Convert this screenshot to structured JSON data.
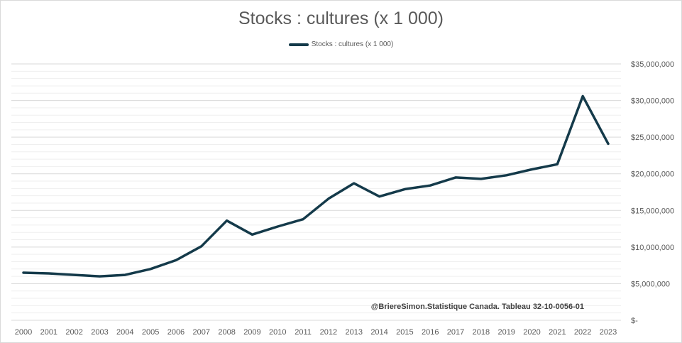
{
  "chart_data": {
    "type": "line",
    "title": "Stocks : cultures (x 1 000)",
    "xlabel": "",
    "ylabel": "",
    "ylim": [
      0,
      35000000
    ],
    "y_ticks": [
      0,
      5000000,
      10000000,
      15000000,
      20000000,
      25000000,
      30000000,
      35000000
    ],
    "y_tick_labels": [
      "$-",
      "$5,000,000",
      "$10,000,000",
      "$15,000,000",
      "$20,000,000",
      "$25,000,000",
      "$30,000,000",
      "$35,000,000"
    ],
    "categories": [
      "2000",
      "2001",
      "2002",
      "2003",
      "2004",
      "2005",
      "2006",
      "2007",
      "2008",
      "2009",
      "2010",
      "2011",
      "2012",
      "2013",
      "2014",
      "2015",
      "2016",
      "2017",
      "2018",
      "2019",
      "2020",
      "2021",
      "2022",
      "2023"
    ],
    "series": [
      {
        "name": "Stocks : cultures (x 1 000)",
        "color": "#143a4a",
        "values": [
          6500000,
          6400000,
          6200000,
          6000000,
          6200000,
          7000000,
          8200000,
          10100000,
          13600000,
          11700000,
          12800000,
          13800000,
          16600000,
          18700000,
          16900000,
          17900000,
          18400000,
          19500000,
          19300000,
          19800000,
          20600000,
          21300000,
          30600000,
          24100000
        ]
      }
    ],
    "grid": true,
    "legend_position": "top",
    "annotation": "@BriereSimon.Statistique Canada. Tableau 32-10-0056-01"
  }
}
